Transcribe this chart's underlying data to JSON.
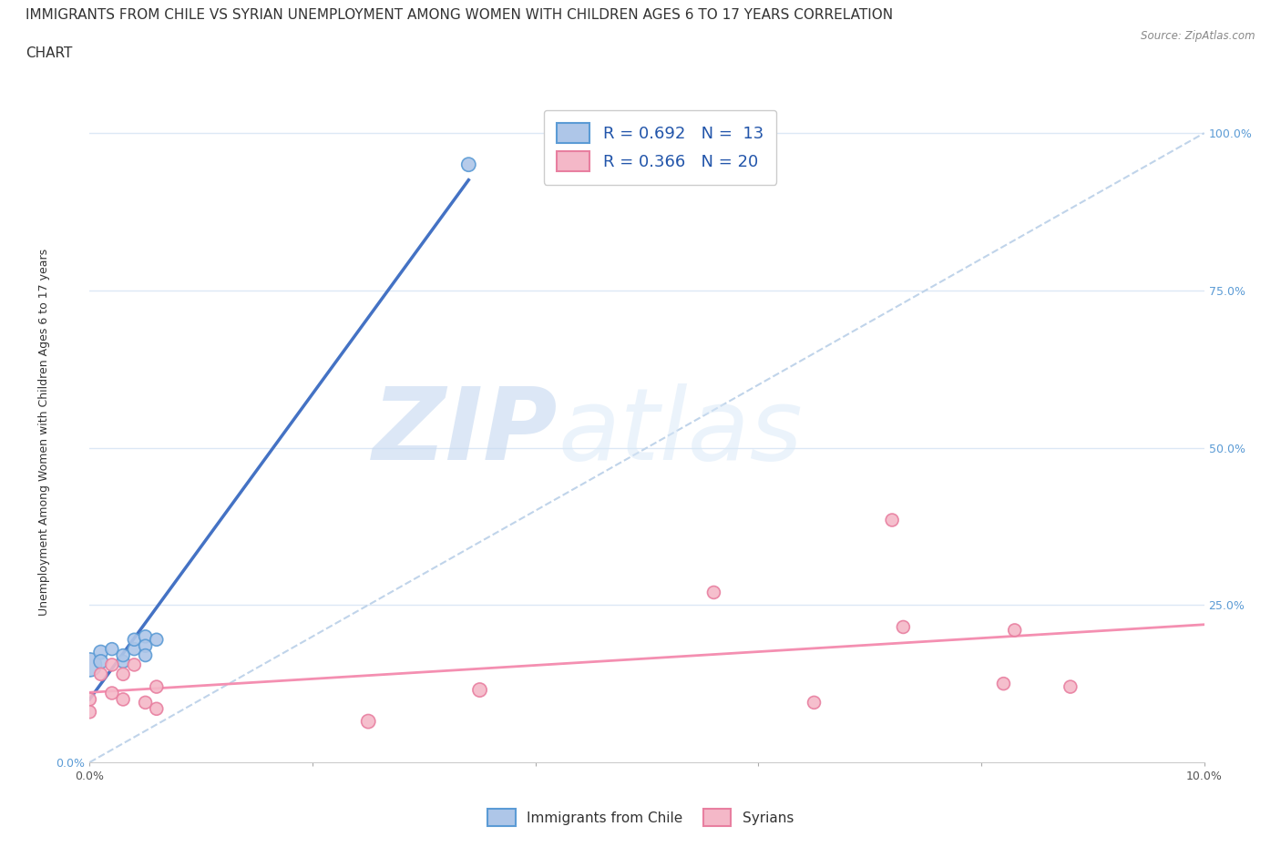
{
  "title_line1": "IMMIGRANTS FROM CHILE VS SYRIAN UNEMPLOYMENT AMONG WOMEN WITH CHILDREN AGES 6 TO 17 YEARS CORRELATION",
  "title_line2": "CHART",
  "source_text": "Source: ZipAtlas.com",
  "ylabel": "Unemployment Among Women with Children Ages 6 to 17 years",
  "xlim": [
    0.0,
    0.1
  ],
  "ylim": [
    0.0,
    1.05
  ],
  "chile_color": "#aec6e8",
  "chile_edge_color": "#5b9bd5",
  "syrian_color": "#f4b8c8",
  "syrian_edge_color": "#e87fa0",
  "trend_chile_color": "#4472c4",
  "trend_syrian_color": "#f48fb1",
  "diagonal_color": "#c0d4ea",
  "grid_color": "#dce8f5",
  "legend_label_chile": "Immigrants from Chile",
  "legend_label_syrian": "Syrians",
  "watermark_zip": "ZIP",
  "watermark_atlas": "atlas",
  "title_fontsize": 11,
  "axis_label_fontsize": 9,
  "tick_fontsize": 9,
  "legend_fontsize": 13,
  "chile_x": [
    0.0,
    0.001,
    0.001,
    0.002,
    0.003,
    0.003,
    0.004,
    0.004,
    0.005,
    0.005,
    0.005,
    0.006,
    0.034
  ],
  "chile_y": [
    0.155,
    0.175,
    0.16,
    0.18,
    0.16,
    0.17,
    0.18,
    0.195,
    0.2,
    0.185,
    0.17,
    0.195,
    0.95
  ],
  "chile_sizes": [
    350,
    120,
    120,
    100,
    100,
    100,
    100,
    100,
    100,
    100,
    100,
    100,
    120
  ],
  "syrian_x": [
    0.0,
    0.0,
    0.001,
    0.002,
    0.002,
    0.003,
    0.003,
    0.004,
    0.005,
    0.006,
    0.006,
    0.025,
    0.035,
    0.056,
    0.065,
    0.072,
    0.073,
    0.082,
    0.083,
    0.088
  ],
  "syrian_y": [
    0.1,
    0.08,
    0.14,
    0.155,
    0.11,
    0.14,
    0.1,
    0.155,
    0.095,
    0.12,
    0.085,
    0.065,
    0.115,
    0.27,
    0.095,
    0.385,
    0.215,
    0.125,
    0.21,
    0.12
  ],
  "syrian_sizes": [
    100,
    100,
    100,
    100,
    100,
    100,
    100,
    100,
    100,
    100,
    100,
    120,
    120,
    100,
    100,
    100,
    100,
    100,
    100,
    100
  ]
}
